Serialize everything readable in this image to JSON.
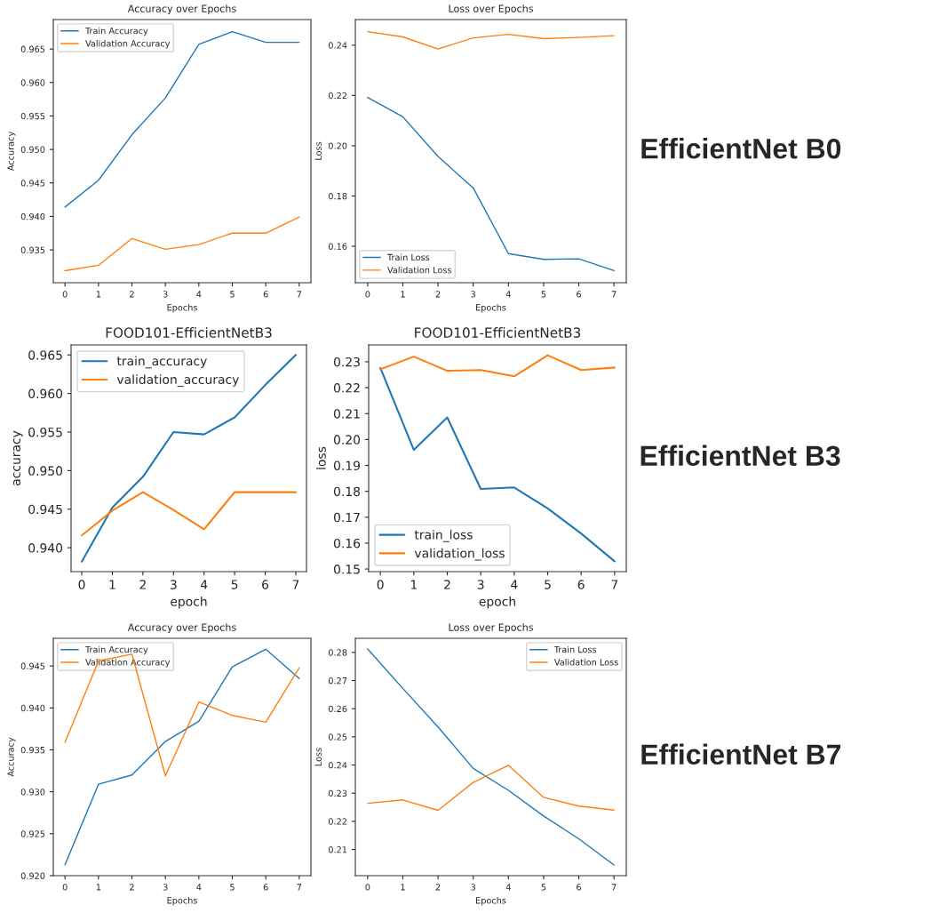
{
  "chart_data": [
    {
      "type": "line",
      "title": "Accuracy over Epochs",
      "xlabel": "Epochs",
      "ylabel": "Accuracy",
      "x": [
        0,
        1,
        2,
        3,
        4,
        5,
        6,
        7
      ],
      "xlim": [
        -0.35,
        7.35
      ],
      "xticks": [
        0,
        1,
        2,
        3,
        4,
        5,
        6,
        7
      ],
      "ylim": [
        0.9301,
        0.9694
      ],
      "yticks": [
        0.935,
        {
          "value": 0.94,
          "label": "0.940"
        },
        0.945,
        {
          "value": 0.95,
          "label": "0.950"
        },
        0.955,
        {
          "value": 0.96,
          "label": "0.960"
        },
        0.965
      ],
      "legend": "top left",
      "grid": false,
      "marker": "none",
      "line_style": "solid",
      "series": [
        {
          "name": "Train Accuracy",
          "color": "#1f77b4",
          "values": [
            0.9414,
            0.9454,
            0.9522,
            0.9577,
            0.9657,
            0.9676,
            0.966,
            0.966
          ]
        },
        {
          "name": "Validation Accuracy",
          "color": "#ff7f0e",
          "values": [
            0.9319,
            0.9327,
            0.9367,
            0.9351,
            0.9358,
            0.9375,
            0.9375,
            0.9399
          ]
        }
      ]
    },
    {
      "type": "line",
      "title": "Loss over Epochs",
      "xlabel": "Epochs",
      "ylabel": "Loss",
      "x": [
        0,
        1,
        2,
        3,
        4,
        5,
        6,
        7
      ],
      "xlim": [
        -0.35,
        7.35
      ],
      "xticks": [
        0,
        1,
        2,
        3,
        4,
        5,
        6,
        7
      ],
      "ylim": [
        0.1455,
        0.2502
      ],
      "yticks": [
        0.16,
        0.18,
        {
          "value": 0.2,
          "label": "0.20"
        },
        0.22,
        0.24
      ],
      "legend": "bottom left",
      "grid": false,
      "marker": "none",
      "line_style": "solid",
      "annotations": [
        "EfficientNet B0"
      ],
      "series": [
        {
          "name": "Train Loss",
          "color": "#1f77b4",
          "values": [
            0.2192,
            0.2115,
            0.1957,
            0.1832,
            0.1571,
            0.1548,
            0.155,
            0.1503
          ]
        },
        {
          "name": "Validation Loss",
          "color": "#ff7f0e",
          "values": [
            0.2454,
            0.2433,
            0.2385,
            0.2429,
            0.2443,
            0.2426,
            0.2431,
            0.2438
          ]
        }
      ]
    },
    {
      "type": "line",
      "title": "FOOD101-EfficientNetB3",
      "xlabel": "epoch",
      "ylabel": "accuracy",
      "x": [
        0,
        1,
        2,
        3,
        4,
        5,
        6,
        7
      ],
      "xlim": [
        -0.35,
        7.35
      ],
      "xticks": [
        0,
        1,
        2,
        3,
        4,
        5,
        6,
        7
      ],
      "ylim": [
        0.9369,
        0.9663
      ],
      "yticks": [
        {
          "value": 0.94,
          "label": "0.940"
        },
        0.945,
        {
          "value": 0.95,
          "label": "0.950"
        },
        0.955,
        {
          "value": 0.96,
          "label": "0.960"
        },
        0.965
      ],
      "legend": "top left",
      "grid": false,
      "marker": "none",
      "line_style": "solid",
      "series": [
        {
          "name": "train_accuracy",
          "color": "#1f77b4",
          "values": [
            0.9382,
            0.9452,
            0.9492,
            0.955,
            0.9547,
            0.9569,
            0.9611,
            0.965
          ]
        },
        {
          "name": "validation_accuracy",
          "color": "#ff7f0e",
          "values": [
            0.9416,
            0.9448,
            0.9472,
            0.9449,
            0.9424,
            0.9472,
            0.9472,
            0.9472
          ]
        }
      ]
    },
    {
      "type": "line",
      "title": "FOOD101-EfficientNetB3",
      "xlabel": "epoch",
      "ylabel": "loss",
      "x": [
        0,
        1,
        2,
        3,
        4,
        5,
        6,
        7
      ],
      "xlim": [
        -0.35,
        7.35
      ],
      "xticks": [
        0,
        1,
        2,
        3,
        4,
        5,
        6,
        7
      ],
      "ylim": [
        0.149,
        0.2365
      ],
      "yticks": [
        0.15,
        0.16,
        0.17,
        0.18,
        0.19,
        {
          "value": 0.2,
          "label": "0.20"
        },
        0.21,
        0.22,
        0.23
      ],
      "legend": "bottom left",
      "grid": false,
      "marker": "none",
      "line_style": "solid",
      "annotations": [
        "EfficientNet B3"
      ],
      "series": [
        {
          "name": "train_loss",
          "color": "#1f77b4",
          "values": [
            0.2276,
            0.196,
            0.2085,
            0.1809,
            0.1815,
            0.1734,
            0.1637,
            0.153
          ]
        },
        {
          "name": "validation_loss",
          "color": "#ff7f0e",
          "values": [
            0.2271,
            0.232,
            0.2265,
            0.2268,
            0.2244,
            0.2325,
            0.2268,
            0.2278
          ]
        }
      ]
    },
    {
      "type": "line",
      "title": "Accuracy over Epochs",
      "xlabel": "Epochs",
      "ylabel": "Accuracy",
      "x": [
        0,
        1,
        2,
        3,
        4,
        5,
        6,
        7
      ],
      "xlim": [
        -0.35,
        7.35
      ],
      "xticks": [
        0,
        1,
        2,
        3,
        4,
        5,
        6,
        7
      ],
      "ylim": [
        0.92,
        0.9483
      ],
      "yticks": [
        {
          "value": 0.92,
          "label": "0.920"
        },
        0.925,
        {
          "value": 0.93,
          "label": "0.930"
        },
        0.935,
        {
          "value": 0.94,
          "label": "0.940"
        },
        0.945
      ],
      "legend": "top left",
      "grid": false,
      "marker": "none",
      "line_style": "solid",
      "series": [
        {
          "name": "Train Accuracy",
          "color": "#1f77b4",
          "values": [
            0.9213,
            0.9309,
            0.932,
            0.936,
            0.9384,
            0.9449,
            0.947,
            0.9435
          ]
        },
        {
          "name": "Validation Accuracy",
          "color": "#ff7f0e",
          "values": [
            0.9359,
            0.9456,
            0.9464,
            0.9319,
            0.9407,
            0.9391,
            0.9383,
            0.9448
          ]
        }
      ]
    },
    {
      "type": "line",
      "title": "Loss over Epochs",
      "xlabel": "Epochs",
      "ylabel": "Loss",
      "x": [
        0,
        1,
        2,
        3,
        4,
        5,
        6,
        7
      ],
      "xlim": [
        -0.35,
        7.35
      ],
      "xticks": [
        0,
        1,
        2,
        3,
        4,
        5,
        6,
        7
      ],
      "ylim": [
        0.2007,
        0.285
      ],
      "yticks": [
        0.21,
        0.22,
        0.23,
        0.24,
        0.25,
        0.26,
        0.27,
        0.28
      ],
      "legend": "top right",
      "grid": false,
      "marker": "none",
      "line_style": "solid",
      "annotations": [
        "EfficientNet B7"
      ],
      "series": [
        {
          "name": "Train Loss",
          "color": "#1f77b4",
          "values": [
            0.2812,
            0.2672,
            0.2535,
            0.2388,
            0.231,
            0.2219,
            0.2138,
            0.2045
          ]
        },
        {
          "name": "Validation Loss",
          "color": "#ff7f0e",
          "values": [
            0.2264,
            0.2276,
            0.2239,
            0.2338,
            0.2399,
            0.2285,
            0.2254,
            0.224
          ]
        }
      ]
    }
  ]
}
